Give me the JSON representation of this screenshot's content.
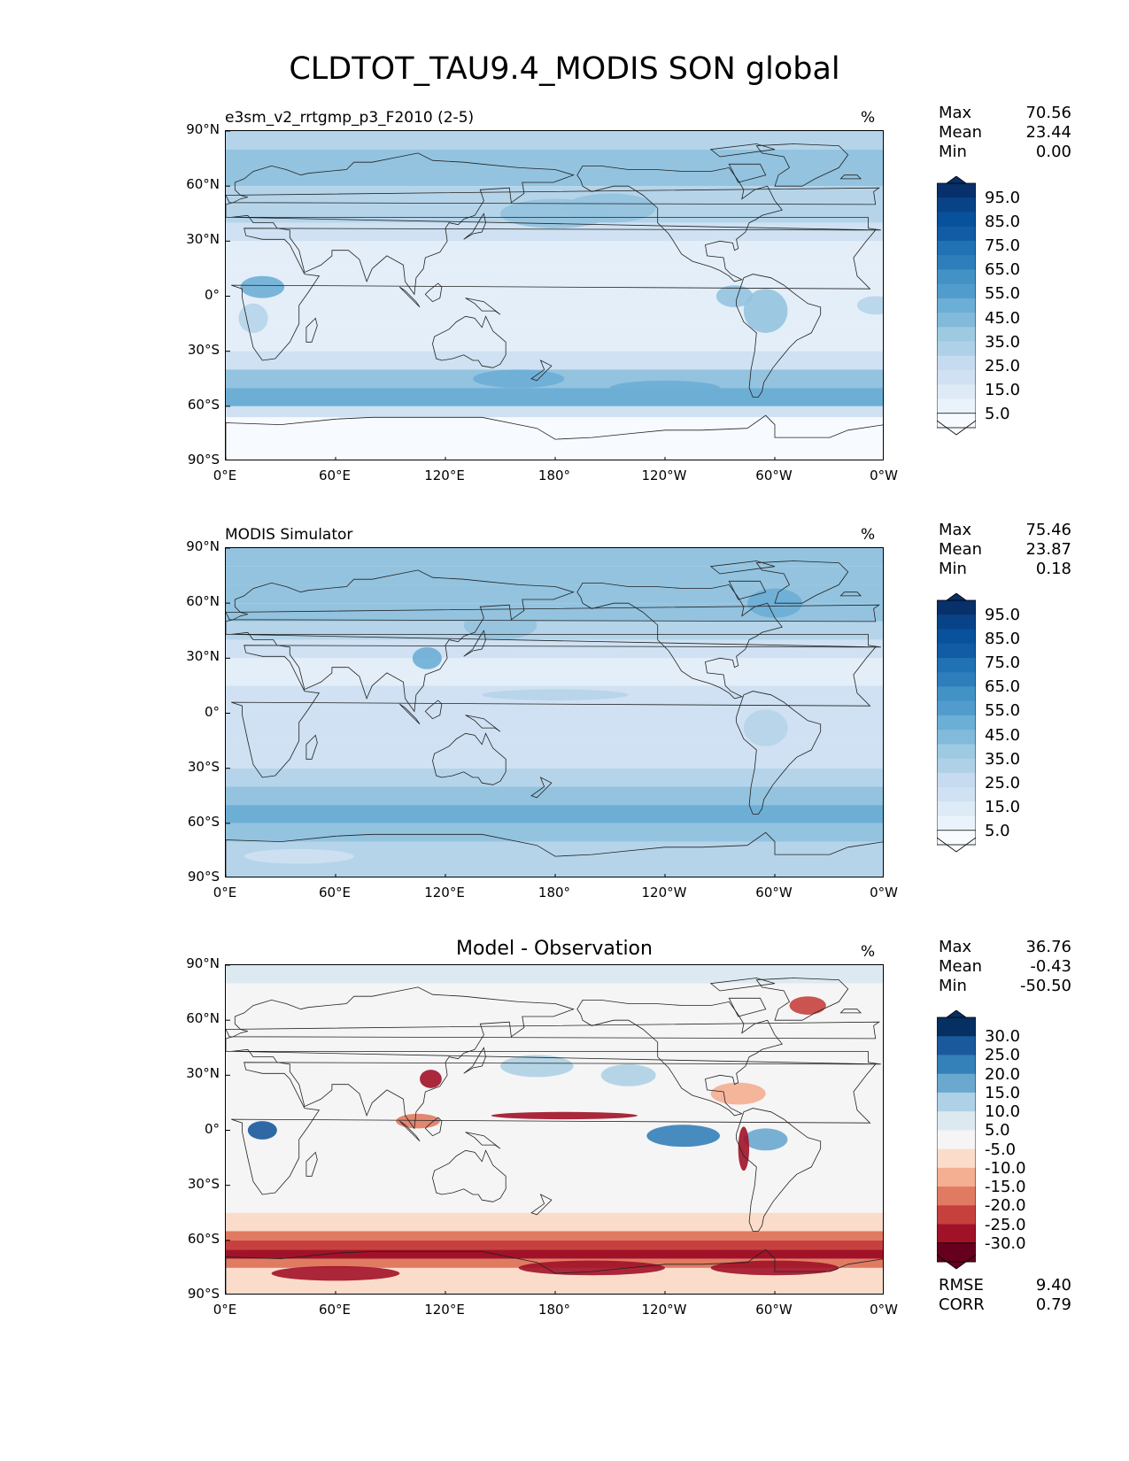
{
  "figure_title": "CLDTOT_TAU9.4_MODIS SON global",
  "lat_ticks": [
    "90°N",
    "60°N",
    "30°N",
    "0°",
    "30°S",
    "60°S",
    "90°S"
  ],
  "lon_ticks": [
    "0°E",
    "60°E",
    "120°E",
    "180°",
    "120°W",
    "60°W",
    "0°W"
  ],
  "panels": [
    {
      "title": "e3sm_v2_rrtgmp_p3_F2010 (2-5)",
      "title_style": "left",
      "units": "%",
      "stats": {
        "max_label": "Max",
        "max": "70.56",
        "mean_label": "Mean",
        "mean": "23.44",
        "min_label": "Min",
        "min": "0.00"
      },
      "colorbar_labels": [
        "95.0",
        "85.0",
        "75.0",
        "65.0",
        "55.0",
        "45.0",
        "35.0",
        "25.0",
        "15.0",
        "5.0"
      ]
    },
    {
      "title": "MODIS Simulator",
      "title_style": "left",
      "units": "%",
      "stats": {
        "max_label": "Max",
        "max": "75.46",
        "mean_label": "Mean",
        "mean": "23.87",
        "min_label": "Min",
        "min": "0.18"
      },
      "colorbar_labels": [
        "95.0",
        "85.0",
        "75.0",
        "65.0",
        "55.0",
        "45.0",
        "35.0",
        "25.0",
        "15.0",
        "5.0"
      ]
    },
    {
      "title": "Model - Observation",
      "title_style": "center",
      "units": "%",
      "stats": {
        "max_label": "Max",
        "max": "36.76",
        "mean_label": "Mean",
        "mean": "-0.43",
        "min_label": "Min",
        "min": "-50.50"
      },
      "colorbar_labels": [
        "30.0",
        "25.0",
        "20.0",
        "15.0",
        "10.0",
        "5.0",
        "-5.0",
        "-10.0",
        "-15.0",
        "-20.0",
        "-25.0",
        "-30.0"
      ],
      "metrics": {
        "rmse_label": "RMSE",
        "rmse": "9.40",
        "corr_label": "CORR",
        "corr": "0.79"
      }
    }
  ],
  "chart_data": [
    {
      "type": "heatmap",
      "title": "e3sm_v2_rrtgmp_p3_F2010 (2-5)",
      "units": "%",
      "xlim": [
        0,
        360
      ],
      "ylim": [
        -90,
        90
      ],
      "x_ticks": [
        "0°E",
        "60°E",
        "120°E",
        "180°",
        "120°W",
        "60°W",
        "0°W"
      ],
      "y_ticks": [
        "90°N",
        "60°N",
        "30°N",
        "0°",
        "30°S",
        "60°S",
        "90°S"
      ],
      "colorbar_levels": [
        0,
        5,
        10,
        15,
        20,
        25,
        30,
        35,
        40,
        45,
        50,
        55,
        60,
        65,
        70,
        75,
        80,
        85,
        90,
        95,
        100
      ],
      "max": 70.56,
      "mean": 23.44,
      "min": 0.0
    },
    {
      "type": "heatmap",
      "title": "MODIS Simulator",
      "units": "%",
      "xlim": [
        0,
        360
      ],
      "ylim": [
        -90,
        90
      ],
      "x_ticks": [
        "0°E",
        "60°E",
        "120°E",
        "180°",
        "120°W",
        "60°W",
        "0°W"
      ],
      "y_ticks": [
        "90°N",
        "60°N",
        "30°N",
        "0°",
        "30°S",
        "60°S",
        "90°S"
      ],
      "colorbar_levels": [
        0,
        5,
        10,
        15,
        20,
        25,
        30,
        35,
        40,
        45,
        50,
        55,
        60,
        65,
        70,
        75,
        80,
        85,
        90,
        95,
        100
      ],
      "max": 75.46,
      "mean": 23.87,
      "min": 0.18
    },
    {
      "type": "heatmap",
      "title": "Model - Observation",
      "units": "%",
      "xlim": [
        0,
        360
      ],
      "ylim": [
        -90,
        90
      ],
      "x_ticks": [
        "0°E",
        "60°E",
        "120°E",
        "180°",
        "120°W",
        "60°W",
        "0°W"
      ],
      "y_ticks": [
        "90°N",
        "60°N",
        "30°N",
        "0°",
        "30°S",
        "60°S",
        "90°S"
      ],
      "colorbar_levels": [
        -35,
        -30,
        -25,
        -20,
        -15,
        -10,
        -5,
        5,
        10,
        15,
        20,
        25,
        30,
        35
      ],
      "max": 36.76,
      "mean": -0.43,
      "min": -50.5,
      "rmse": 9.4,
      "corr": 0.79
    }
  ],
  "colors": {
    "seq_palette": [
      "#f7fbff",
      "#e3eef9",
      "#cfe1f2",
      "#b5d4e9",
      "#93c3df",
      "#6daed5",
      "#4b97c9",
      "#2f7ebc",
      "#1864aa",
      "#0a4a90",
      "#08306b"
    ],
    "div_palette": [
      "#67001f",
      "#a11228",
      "#c6413e",
      "#e07b62",
      "#f4ae91",
      "#fbdccb",
      "#f5f5f5",
      "#dde9f1",
      "#aed1e6",
      "#6aa8cf",
      "#3480b9",
      "#1a5a9c",
      "#053061"
    ]
  }
}
